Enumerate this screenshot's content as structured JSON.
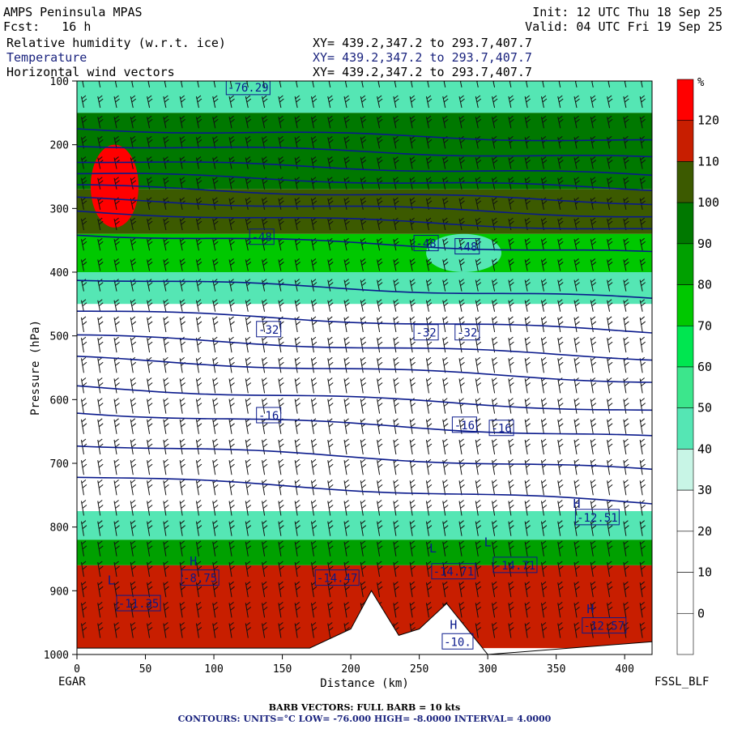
{
  "header": {
    "model": "AMPS Peninsula MPAS",
    "forecast": "Fcst:   16 h",
    "init": "Init: 12 UTC Thu 18 Sep 25",
    "valid": "Valid: 04 UTC Fri 19 Sep 25",
    "fields": [
      {
        "name": "Relative humidity (w.r.t. ice)",
        "xy": "XY= 439.2,347.2 to 293.7,407.7"
      },
      {
        "name": "Temperature",
        "xy": "XY= 439.2,347.2 to 293.7,407.7"
      },
      {
        "name": "Horizontal wind vectors",
        "xy": "XY= 439.2,347.2 to 293.7,407.7"
      }
    ]
  },
  "corner_labels": {
    "left": "EGAR",
    "right": "FSSL_BLF"
  },
  "footer": {
    "barbs": "BARB VECTORS:  FULL BARB = 10 kts",
    "contours": "CONTOURS:  UNITS=°C  LOW= -76.000      HIGH= -8.0000      INTERVAL=    4.0000"
  },
  "chart_data": {
    "type": "heatmap",
    "xlabel": "Distance (km)",
    "ylabel": "Pressure (hPa)",
    "xlim": [
      0,
      420
    ],
    "ylim": [
      1000,
      100
    ],
    "x_ticks": [
      0,
      50,
      100,
      150,
      200,
      250,
      300,
      350,
      400
    ],
    "y_ticks": [
      100,
      200,
      300,
      400,
      500,
      600,
      700,
      800,
      900,
      1000
    ],
    "colorbar": {
      "unit": "%",
      "levels": [
        0,
        10,
        20,
        30,
        40,
        50,
        60,
        70,
        80,
        90,
        100,
        110,
        120
      ],
      "colors": [
        "#ffffff",
        "#ffffff",
        "#ffffff",
        "#ffffff",
        "#c8f5e6",
        "#55e6b4",
        "#3ce68c",
        "#00e650",
        "#00c800",
        "#00a000",
        "#007800",
        "#3c5a00",
        "#c81e00",
        "#ff0000"
      ]
    },
    "rh_bands": [
      {
        "top": 100,
        "bottom": 150,
        "value": 45
      },
      {
        "top": 150,
        "bottom": 270,
        "value": 95
      },
      {
        "top": 270,
        "bottom": 340,
        "value": 105
      },
      {
        "top": 340,
        "bottom": 400,
        "value": 75
      },
      {
        "top": 400,
        "bottom": 450,
        "value": 45
      },
      {
        "top": 450,
        "bottom": 775,
        "value": 10
      },
      {
        "top": 775,
        "bottom": 820,
        "value": 45
      },
      {
        "top": 820,
        "bottom": 860,
        "value": 85
      },
      {
        "top": 860,
        "bottom": 990,
        "value": 115
      }
    ],
    "rh_blobs": [
      {
        "x": [
          10,
          45
        ],
        "p": [
          200,
          330
        ],
        "value": 125
      },
      {
        "x": [
          255,
          310
        ],
        "p": [
          340,
          400
        ],
        "value": 45
      }
    ],
    "terrain": [
      [
        0,
        990
      ],
      [
        170,
        990
      ],
      [
        200,
        960
      ],
      [
        215,
        900
      ],
      [
        235,
        970
      ],
      [
        250,
        960
      ],
      [
        270,
        920
      ],
      [
        300,
        1000
      ],
      [
        420,
        980
      ]
    ],
    "isotherms_p_at_x0": [
      175,
      200,
      225,
      245,
      265,
      285,
      305,
      340,
      410,
      460,
      500,
      535,
      580,
      620,
      670,
      720
    ],
    "isotherm_labels": [
      {
        "text": "-76.29",
        "x": 125,
        "p": 110
      },
      {
        "text": "-48",
        "x": 135,
        "p": 345
      },
      {
        "text": "-48",
        "x": 255,
        "p": 355
      },
      {
        "text": "-48",
        "x": 285,
        "p": 360
      },
      {
        "text": "-32",
        "x": 140,
        "p": 490
      },
      {
        "text": "-32",
        "x": 255,
        "p": 495
      },
      {
        "text": "-32",
        "x": 285,
        "p": 495
      },
      {
        "text": "-16",
        "x": 140,
        "p": 625
      },
      {
        "text": "-16",
        "x": 283,
        "p": 640
      },
      {
        "text": "-16",
        "x": 310,
        "p": 645
      },
      {
        "text": "-12.51",
        "x": 380,
        "p": 785
      },
      {
        "text": "-11.35",
        "x": 45,
        "p": 920
      },
      {
        "text": "-8.75",
        "x": 90,
        "p": 880
      },
      {
        "text": "-14.47",
        "x": 190,
        "p": 880
      },
      {
        "text": "-14.71",
        "x": 275,
        "p": 870
      },
      {
        "text": "-14.71",
        "x": 320,
        "p": 860
      },
      {
        "text": "-10.",
        "x": 278,
        "p": 980
      },
      {
        "text": "-12.57",
        "x": 385,
        "p": 955
      }
    ],
    "extrema": [
      {
        "text": "H",
        "x": 365,
        "p": 770
      },
      {
        "text": "L",
        "x": 260,
        "p": 840
      },
      {
        "text": "L",
        "x": 300,
        "p": 830
      },
      {
        "text": "H",
        "x": 275,
        "p": 960
      },
      {
        "text": "H",
        "x": 375,
        "p": 935
      },
      {
        "text": "L",
        "x": 25,
        "p": 890
      },
      {
        "text": "H",
        "x": 85,
        "p": 860
      }
    ]
  }
}
